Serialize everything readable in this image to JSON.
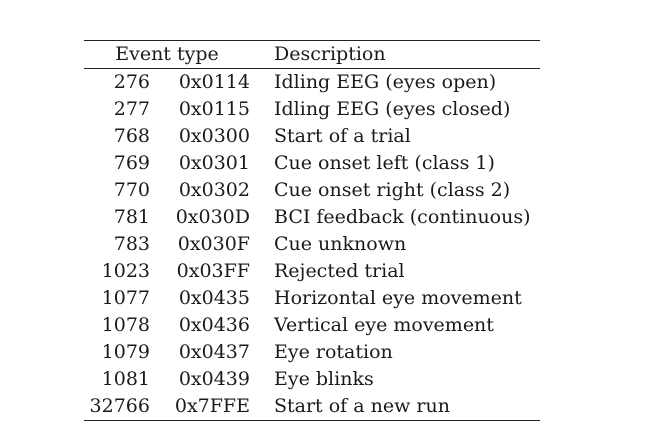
{
  "table": {
    "header": {
      "event_type": "Event type",
      "description": "Description"
    },
    "rows": [
      {
        "dec": "276",
        "hex": "0x0114",
        "desc": "Idling EEG (eyes open)"
      },
      {
        "dec": "277",
        "hex": "0x0115",
        "desc": "Idling EEG (eyes closed)"
      },
      {
        "dec": "768",
        "hex": "0x0300",
        "desc": "Start of a trial"
      },
      {
        "dec": "769",
        "hex": "0x0301",
        "desc": "Cue onset left (class 1)"
      },
      {
        "dec": "770",
        "hex": "0x0302",
        "desc": "Cue onset right (class 2)"
      },
      {
        "dec": "781",
        "hex": "0x030D",
        "desc": "BCI feedback (continuous)"
      },
      {
        "dec": "783",
        "hex": "0x030F",
        "desc": "Cue unknown"
      },
      {
        "dec": "1023",
        "hex": "0x03FF",
        "desc": "Rejected trial"
      },
      {
        "dec": "1077",
        "hex": "0x0435",
        "desc": "Horizontal eye movement"
      },
      {
        "dec": "1078",
        "hex": "0x0436",
        "desc": "Vertical eye movement"
      },
      {
        "dec": "1079",
        "hex": "0x0437",
        "desc": "Eye rotation"
      },
      {
        "dec": "1081",
        "hex": "0x0439",
        "desc": "Eye blinks"
      },
      {
        "dec": "32766",
        "hex": "0x7FFE",
        "desc": "Start of a new run"
      }
    ]
  }
}
